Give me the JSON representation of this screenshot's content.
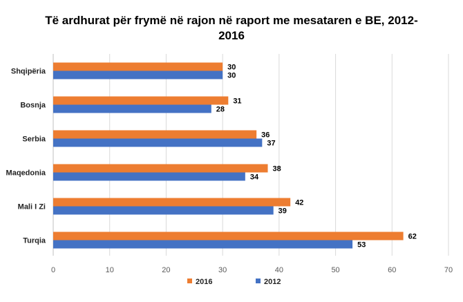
{
  "chart_data": {
    "type": "bar",
    "orientation": "horizontal",
    "title_line1": "Të ardhurat për frymë në rajon në raport me mesataren e BE, 2012-",
    "title_line2": "2016",
    "categories": [
      "Shqipëria",
      "Bosnja",
      "Serbia",
      "Maqedonia",
      "Mali I Zi",
      "Turqia"
    ],
    "series": [
      {
        "name": "2016",
        "color": "#ED7D31",
        "values": [
          30,
          31,
          36,
          38,
          42,
          62
        ]
      },
      {
        "name": "2012",
        "color": "#4472C4",
        "values": [
          30,
          28,
          37,
          34,
          39,
          53
        ]
      }
    ],
    "xlim": [
      0,
      70
    ],
    "xticks": [
      0,
      10,
      20,
      30,
      40,
      50,
      60,
      70
    ],
    "grid": true,
    "legend_position": "bottom"
  }
}
